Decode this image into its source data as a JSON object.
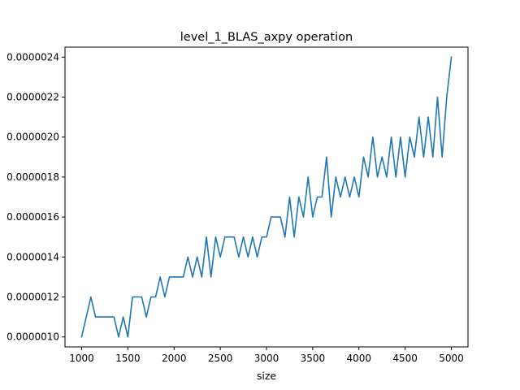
{
  "chart_data": {
    "type": "line",
    "title": "level_1_BLAS_axpy operation",
    "xlabel": "size",
    "ylabel": "",
    "xlim": [
      820,
      5180
    ],
    "ylim": [
      9.5e-07,
      2.45e-06
    ],
    "grid": false,
    "x_ticks": [
      1000,
      1500,
      2000,
      2500,
      3000,
      3500,
      4000,
      4500,
      5000
    ],
    "x_tick_labels": [
      "1000",
      "1500",
      "2000",
      "2500",
      "3000",
      "3500",
      "4000",
      "4500",
      "5000"
    ],
    "y_ticks": [
      1e-06,
      1.2e-06,
      1.4e-06,
      1.6e-06,
      1.8e-06,
      2e-06,
      2.2e-06,
      2.4e-06
    ],
    "y_tick_labels": [
      "0.0000010",
      "0.0000012",
      "0.0000014",
      "0.0000016",
      "0.0000018",
      "0.0000020",
      "0.0000022",
      "0.0000024"
    ],
    "series": [
      {
        "color": "#1f77b4",
        "x": [
          1000,
          1050,
          1100,
          1150,
          1200,
          1250,
          1300,
          1350,
          1400,
          1450,
          1500,
          1550,
          1600,
          1650,
          1700,
          1750,
          1800,
          1850,
          1900,
          1950,
          2000,
          2050,
          2100,
          2150,
          2200,
          2250,
          2300,
          2350,
          2400,
          2450,
          2500,
          2550,
          2600,
          2650,
          2700,
          2750,
          2800,
          2850,
          2900,
          2950,
          3000,
          3050,
          3100,
          3150,
          3200,
          3250,
          3300,
          3350,
          3400,
          3450,
          3500,
          3550,
          3600,
          3650,
          3700,
          3750,
          3800,
          3850,
          3900,
          3950,
          4000,
          4050,
          4100,
          4150,
          4200,
          4250,
          4300,
          4350,
          4400,
          4450,
          4500,
          4550,
          4600,
          4650,
          4700,
          4750,
          4800,
          4850,
          4900,
          4950,
          5000
        ],
        "values": [
          1e-06,
          1.1e-06,
          1.2e-06,
          1.1e-06,
          1.1e-06,
          1.1e-06,
          1.1e-06,
          1.1e-06,
          1e-06,
          1.1e-06,
          1e-06,
          1.2e-06,
          1.2e-06,
          1.2e-06,
          1.1e-06,
          1.2e-06,
          1.2e-06,
          1.3e-06,
          1.2e-06,
          1.3e-06,
          1.3e-06,
          1.3e-06,
          1.3e-06,
          1.4e-06,
          1.3e-06,
          1.4e-06,
          1.3e-06,
          1.5e-06,
          1.3e-06,
          1.5e-06,
          1.4e-06,
          1.5e-06,
          1.5e-06,
          1.5e-06,
          1.4e-06,
          1.5e-06,
          1.4e-06,
          1.5e-06,
          1.4e-06,
          1.5e-06,
          1.5e-06,
          1.6e-06,
          1.6e-06,
          1.6e-06,
          1.5e-06,
          1.7e-06,
          1.5e-06,
          1.7e-06,
          1.6e-06,
          1.8e-06,
          1.6e-06,
          1.7e-06,
          1.7e-06,
          1.9e-06,
          1.6e-06,
          1.8e-06,
          1.7e-06,
          1.8e-06,
          1.7e-06,
          1.8e-06,
          1.7e-06,
          1.9e-06,
          1.8e-06,
          2e-06,
          1.8e-06,
          1.9e-06,
          1.8e-06,
          2e-06,
          1.8e-06,
          2e-06,
          1.8e-06,
          2e-06,
          1.9e-06,
          2.1e-06,
          1.9e-06,
          2.1e-06,
          1.9e-06,
          2.2e-06,
          1.9e-06,
          2.2e-06,
          2.4e-06
        ]
      }
    ]
  }
}
